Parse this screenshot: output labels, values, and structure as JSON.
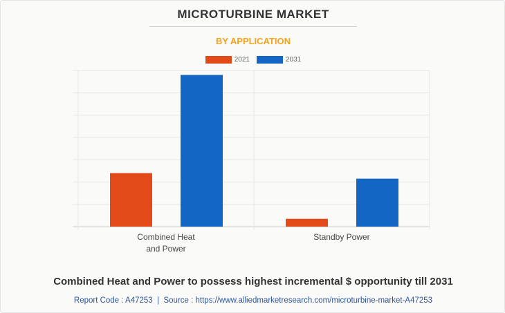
{
  "title": "MICROTURBINE MARKET",
  "subtitle": "BY APPLICATION",
  "headline": "Combined Heat and Power to possess highest incremental $ opportunity till 2031",
  "footer": {
    "report_code": "Report Code : A47253",
    "separator": "|",
    "source": "Source : https://www.alliedmarketresearch.com/microturbine-market-A47253"
  },
  "colors": {
    "2021": "#e34a19",
    "2031": "#1466c4"
  },
  "chart_data": {
    "type": "bar",
    "categories": [
      [
        "Combined Heat",
        "and Power"
      ],
      [
        "Standby Power"
      ]
    ],
    "series": [
      {
        "name": "2021",
        "values": [
          24,
          3.5
        ]
      },
      {
        "name": "2031",
        "values": [
          68,
          21.5
        ]
      }
    ],
    "ylim": [
      0,
      70
    ],
    "grid": true,
    "legend": "top-center",
    "xlabel": "",
    "ylabel": ""
  }
}
